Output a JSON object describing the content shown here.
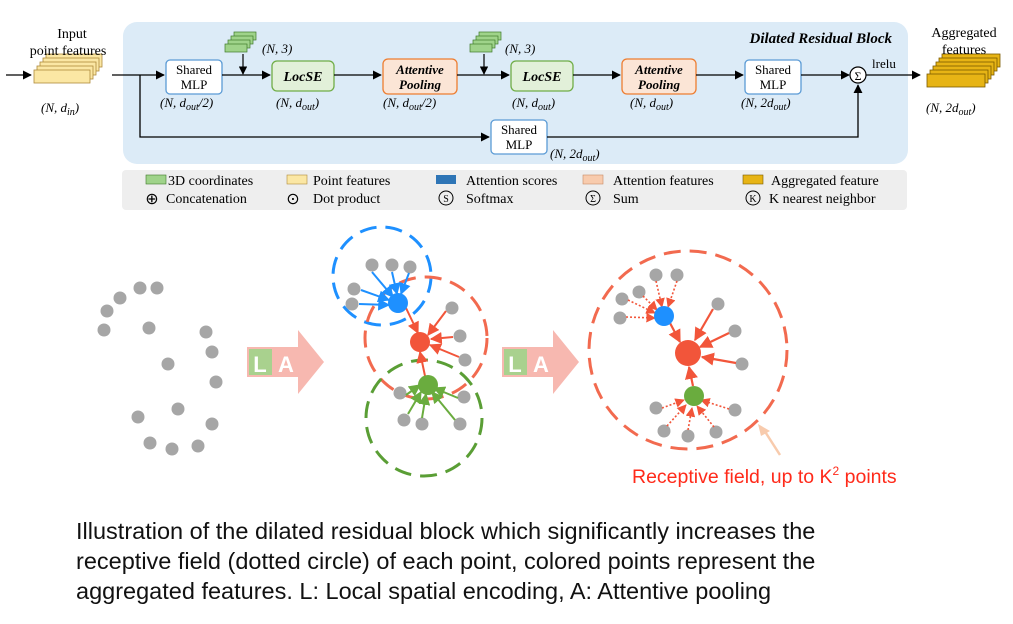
{
  "top": {
    "input_label": [
      "Input",
      "point features"
    ],
    "input_dims": "(N, d",
    "input_dims_sub": "in",
    "block_title": "Dilated Residual Block",
    "coords_dims_1": "(N, 3)",
    "coords_dims_2": "(N, 3)",
    "mlp1": {
      "label": [
        "Shared",
        "MLP"
      ],
      "dims": "(N, d",
      "sub": "out",
      "suffix": "/2)"
    },
    "locse1": {
      "label": "LocSE",
      "dims": "(N, d",
      "sub": "out",
      "suffix": ")"
    },
    "pool1": {
      "label": [
        "Attentive",
        "Pooling"
      ],
      "dims": "(N, d",
      "sub": "out",
      "suffix": "/2)"
    },
    "locse2": {
      "label": "LocSE",
      "dims": "(N, d",
      "sub": "out",
      "suffix": ")"
    },
    "pool2": {
      "label": [
        "Attentive",
        "Pooling"
      ],
      "dims": "(N, d",
      "sub": "out",
      "suffix": ")"
    },
    "mlp2": {
      "label": [
        "Shared",
        "MLP"
      ],
      "dims": "(N, 2d",
      "sub": "out",
      "suffix": ")"
    },
    "mlp_skip": {
      "label": [
        "Shared",
        "MLP"
      ],
      "dims": "(N, 2d",
      "sub": "out",
      "suffix": ")"
    },
    "sum_symbol": "Σ",
    "activation": "lrelu",
    "output_label": [
      "Aggregated",
      "features"
    ],
    "output_dims": "(N, 2d",
    "output_dims_sub": "out",
    "output_dims_suffix": ")"
  },
  "legend": {
    "row1": [
      {
        "text": "3D coordinates",
        "color": "#9fd38a"
      },
      {
        "text": "Point features",
        "color": "#fbe7a4"
      },
      {
        "text": "Attention scores",
        "color": "#2e75b6"
      },
      {
        "text": "Attention features",
        "color": "#f8cbad"
      },
      {
        "text": "Aggregated feature",
        "color": "#e7b415"
      }
    ],
    "row2": [
      {
        "symbol": "⊕",
        "text": "Concatenation"
      },
      {
        "symbol": "⊙",
        "text": "Dot product"
      },
      {
        "symbol": "S",
        "text": "Softmax"
      },
      {
        "symbol": "Σ",
        "text": "Sum"
      },
      {
        "symbol": "K",
        "text": "K nearest neighbor"
      }
    ]
  },
  "bottom": {
    "arrow_label_L": "L",
    "arrow_label_A": "A",
    "receptive_label": "Receptive field, up to K",
    "receptive_sup": "2",
    "receptive_suffix": " points"
  },
  "colors": {
    "block_bg": "#dcebf7",
    "mlp_fill": "#ffffff",
    "mlp_stroke": "#5b9bd5",
    "locse_fill": "#e2f0d9",
    "locse_stroke": "#70ad47",
    "pool_fill": "#fbe5d6",
    "pool_stroke": "#ed7d31",
    "blue": "#1e90ff",
    "red": "#f2553a",
    "green": "#6aac3e",
    "gray": "#a6a6a6",
    "dash_blue": "#1e90ff",
    "dash_red": "#f26a4f",
    "dash_green": "#5a9e35",
    "arrow_fill": "#f7b8b0"
  },
  "caption": [
    "Illustration of the dilated residual block which significantly increases the",
    "receptive field (dotted circle) of each point, colored points represent the",
    "aggregated features. L: Local spatial encoding, A: Attentive pooling"
  ]
}
